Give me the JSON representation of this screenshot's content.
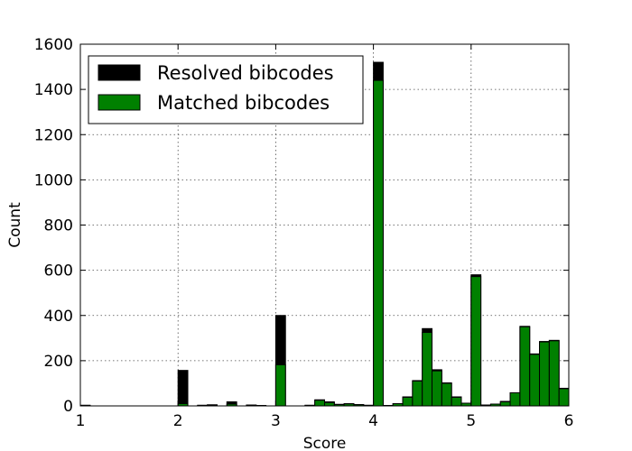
{
  "chart_data": {
    "type": "bar",
    "xlabel": "Score",
    "ylabel": "Count",
    "xlim": [
      1,
      6
    ],
    "ylim": [
      0,
      1600
    ],
    "grid": true,
    "legend_placement": "top-left",
    "x_ticks": [
      1,
      2,
      3,
      4,
      5,
      6
    ],
    "y_ticks": [
      0,
      200,
      400,
      600,
      800,
      1000,
      1200,
      1400,
      1600
    ],
    "bin_width": 0.1,
    "series": [
      {
        "name": "Resolved bibcodes",
        "color": "#000000",
        "bins": [
          {
            "x": 1.0,
            "value": 3
          },
          {
            "x": 2.0,
            "value": 157
          },
          {
            "x": 2.2,
            "value": 3
          },
          {
            "x": 2.3,
            "value": 5
          },
          {
            "x": 2.5,
            "value": 18
          },
          {
            "x": 2.7,
            "value": 4
          },
          {
            "x": 2.8,
            "value": 2
          },
          {
            "x": 3.0,
            "value": 400
          },
          {
            "x": 3.3,
            "value": 3
          },
          {
            "x": 3.4,
            "value": 27
          },
          {
            "x": 3.5,
            "value": 18
          },
          {
            "x": 3.6,
            "value": 7
          },
          {
            "x": 3.7,
            "value": 10
          },
          {
            "x": 3.8,
            "value": 6
          },
          {
            "x": 3.9,
            "value": 3
          },
          {
            "x": 4.0,
            "value": 1520
          },
          {
            "x": 4.1,
            "value": 2
          },
          {
            "x": 4.2,
            "value": 10
          },
          {
            "x": 4.3,
            "value": 40
          },
          {
            "x": 4.4,
            "value": 112
          },
          {
            "x": 4.5,
            "value": 342
          },
          {
            "x": 4.6,
            "value": 160
          },
          {
            "x": 4.7,
            "value": 102
          },
          {
            "x": 4.8,
            "value": 40
          },
          {
            "x": 4.9,
            "value": 12
          },
          {
            "x": 5.0,
            "value": 580
          },
          {
            "x": 5.1,
            "value": 4
          },
          {
            "x": 5.2,
            "value": 8
          },
          {
            "x": 5.3,
            "value": 20
          },
          {
            "x": 5.4,
            "value": 58
          },
          {
            "x": 5.5,
            "value": 352
          },
          {
            "x": 5.6,
            "value": 230
          },
          {
            "x": 5.7,
            "value": 285
          },
          {
            "x": 5.8,
            "value": 290
          },
          {
            "x": 5.9,
            "value": 78
          }
        ]
      },
      {
        "name": "Matched bibcodes",
        "color": "#008000",
        "bins": [
          {
            "x": 1.0,
            "value": 2
          },
          {
            "x": 2.0,
            "value": 10
          },
          {
            "x": 2.2,
            "value": 2
          },
          {
            "x": 2.3,
            "value": 3
          },
          {
            "x": 2.5,
            "value": 8
          },
          {
            "x": 2.7,
            "value": 3
          },
          {
            "x": 2.8,
            "value": 1
          },
          {
            "x": 3.0,
            "value": 182
          },
          {
            "x": 3.3,
            "value": 2
          },
          {
            "x": 3.4,
            "value": 25
          },
          {
            "x": 3.5,
            "value": 15
          },
          {
            "x": 3.6,
            "value": 6
          },
          {
            "x": 3.7,
            "value": 9
          },
          {
            "x": 3.8,
            "value": 5
          },
          {
            "x": 3.9,
            "value": 2
          },
          {
            "x": 4.0,
            "value": 1440
          },
          {
            "x": 4.1,
            "value": 2
          },
          {
            "x": 4.2,
            "value": 10
          },
          {
            "x": 4.3,
            "value": 38
          },
          {
            "x": 4.4,
            "value": 110
          },
          {
            "x": 4.5,
            "value": 325
          },
          {
            "x": 4.6,
            "value": 155
          },
          {
            "x": 4.7,
            "value": 100
          },
          {
            "x": 4.8,
            "value": 38
          },
          {
            "x": 4.9,
            "value": 12
          },
          {
            "x": 5.0,
            "value": 572
          },
          {
            "x": 5.1,
            "value": 4
          },
          {
            "x": 5.2,
            "value": 8
          },
          {
            "x": 5.3,
            "value": 18
          },
          {
            "x": 5.4,
            "value": 58
          },
          {
            "x": 5.5,
            "value": 350
          },
          {
            "x": 5.6,
            "value": 228
          },
          {
            "x": 5.7,
            "value": 283
          },
          {
            "x": 5.8,
            "value": 288
          },
          {
            "x": 5.9,
            "value": 76
          }
        ]
      }
    ]
  }
}
